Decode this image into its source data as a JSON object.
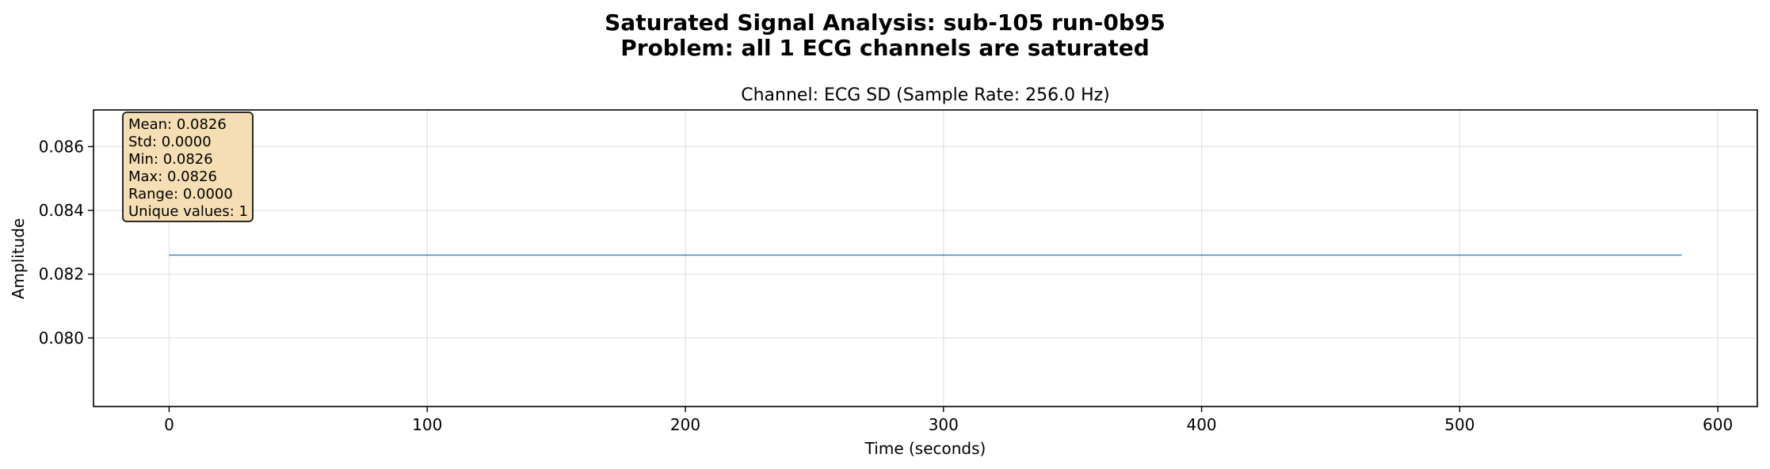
{
  "suptitle": {
    "line1": "Saturated Signal Analysis: sub-105 run-0b95",
    "line2": "Problem: all 1 ECG channels are saturated"
  },
  "stats": [
    "Mean: 0.0826",
    "Std: 0.0000",
    "Min: 0.0826",
    "Max: 0.0826",
    "Range: 0.0000",
    "Unique values: 1"
  ],
  "chart_data": {
    "type": "line",
    "title": "Channel: ECG SD (Sample Rate: 256.0 Hz)",
    "xlabel": "Time (seconds)",
    "ylabel": "Amplitude",
    "xlim": [
      -29.3,
      615.3
    ],
    "ylim": [
      0.07785,
      0.08715
    ],
    "xticks": [
      0,
      100,
      200,
      300,
      400,
      500,
      600
    ],
    "yticks": [
      0.08,
      0.082,
      0.084,
      0.086
    ],
    "xtick_labels": [
      "0",
      "100",
      "200",
      "300",
      "400",
      "500",
      "600"
    ],
    "ytick_labels": [
      "0.080",
      "0.082",
      "0.084",
      "0.086"
    ],
    "grid": true,
    "series": [
      {
        "x": [
          0,
          586
        ],
        "y": [
          0.0826,
          0.0826
        ],
        "color": "#1f77b4"
      }
    ]
  }
}
